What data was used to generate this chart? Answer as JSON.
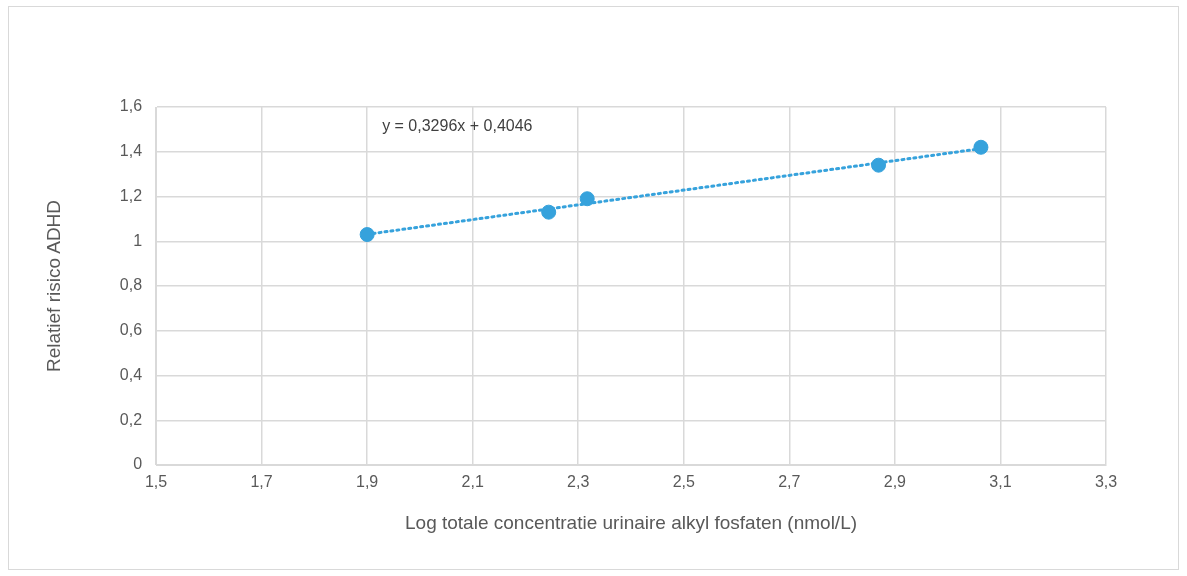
{
  "chart_data": {
    "type": "scatter",
    "xlabel": "Log totale concentratie urinaire alkyl fosfaten (nmol/L)",
    "ylabel": "Relatief risico ADHD",
    "annotations": [
      "y = 0,3296x + 0,4046"
    ],
    "series": [
      {
        "type": "scatter",
        "color": "#36a2dc",
        "x": [
          1.9,
          2.244,
          2.317,
          2.869,
          3.063
        ],
        "values": [
          1.03,
          1.13,
          1.19,
          1.34,
          1.42
        ],
        "marker": "circle"
      },
      {
        "type": "line",
        "color": "#36a2dc",
        "x": [
          1.9,
          3.063
        ],
        "values": [
          1.031,
          1.414
        ],
        "line_style": "dotted",
        "marker": "none"
      }
    ],
    "xlim": [
      1.5,
      3.3
    ],
    "xticks": [
      {
        "value": 1.5,
        "label": "1,5"
      },
      {
        "value": 1.7,
        "label": "1,7"
      },
      {
        "value": 1.9,
        "label": "1,9"
      },
      {
        "value": 2.1,
        "label": "2,1"
      },
      {
        "value": 2.3,
        "label": "2,3"
      },
      {
        "value": 2.5,
        "label": "2,5"
      },
      {
        "value": 2.7,
        "label": "2,7"
      },
      {
        "value": 2.9,
        "label": "2,9"
      },
      {
        "value": 3.1,
        "label": "3,1"
      },
      {
        "value": 3.3,
        "label": "3,3"
      }
    ],
    "ylim": [
      0,
      1.6
    ],
    "yticks": [
      0,
      {
        "value": 0.2,
        "label": "0,2"
      },
      {
        "value": 0.4,
        "label": "0,4"
      },
      {
        "value": 0.6,
        "label": "0,6"
      },
      {
        "value": 0.8,
        "label": "0,8"
      },
      1,
      {
        "value": 1.2,
        "label": "1,2"
      },
      {
        "value": 1.4,
        "label": "1,4"
      },
      {
        "value": 1.6,
        "label": "1,6"
      }
    ],
    "grid": true,
    "legend": false
  }
}
